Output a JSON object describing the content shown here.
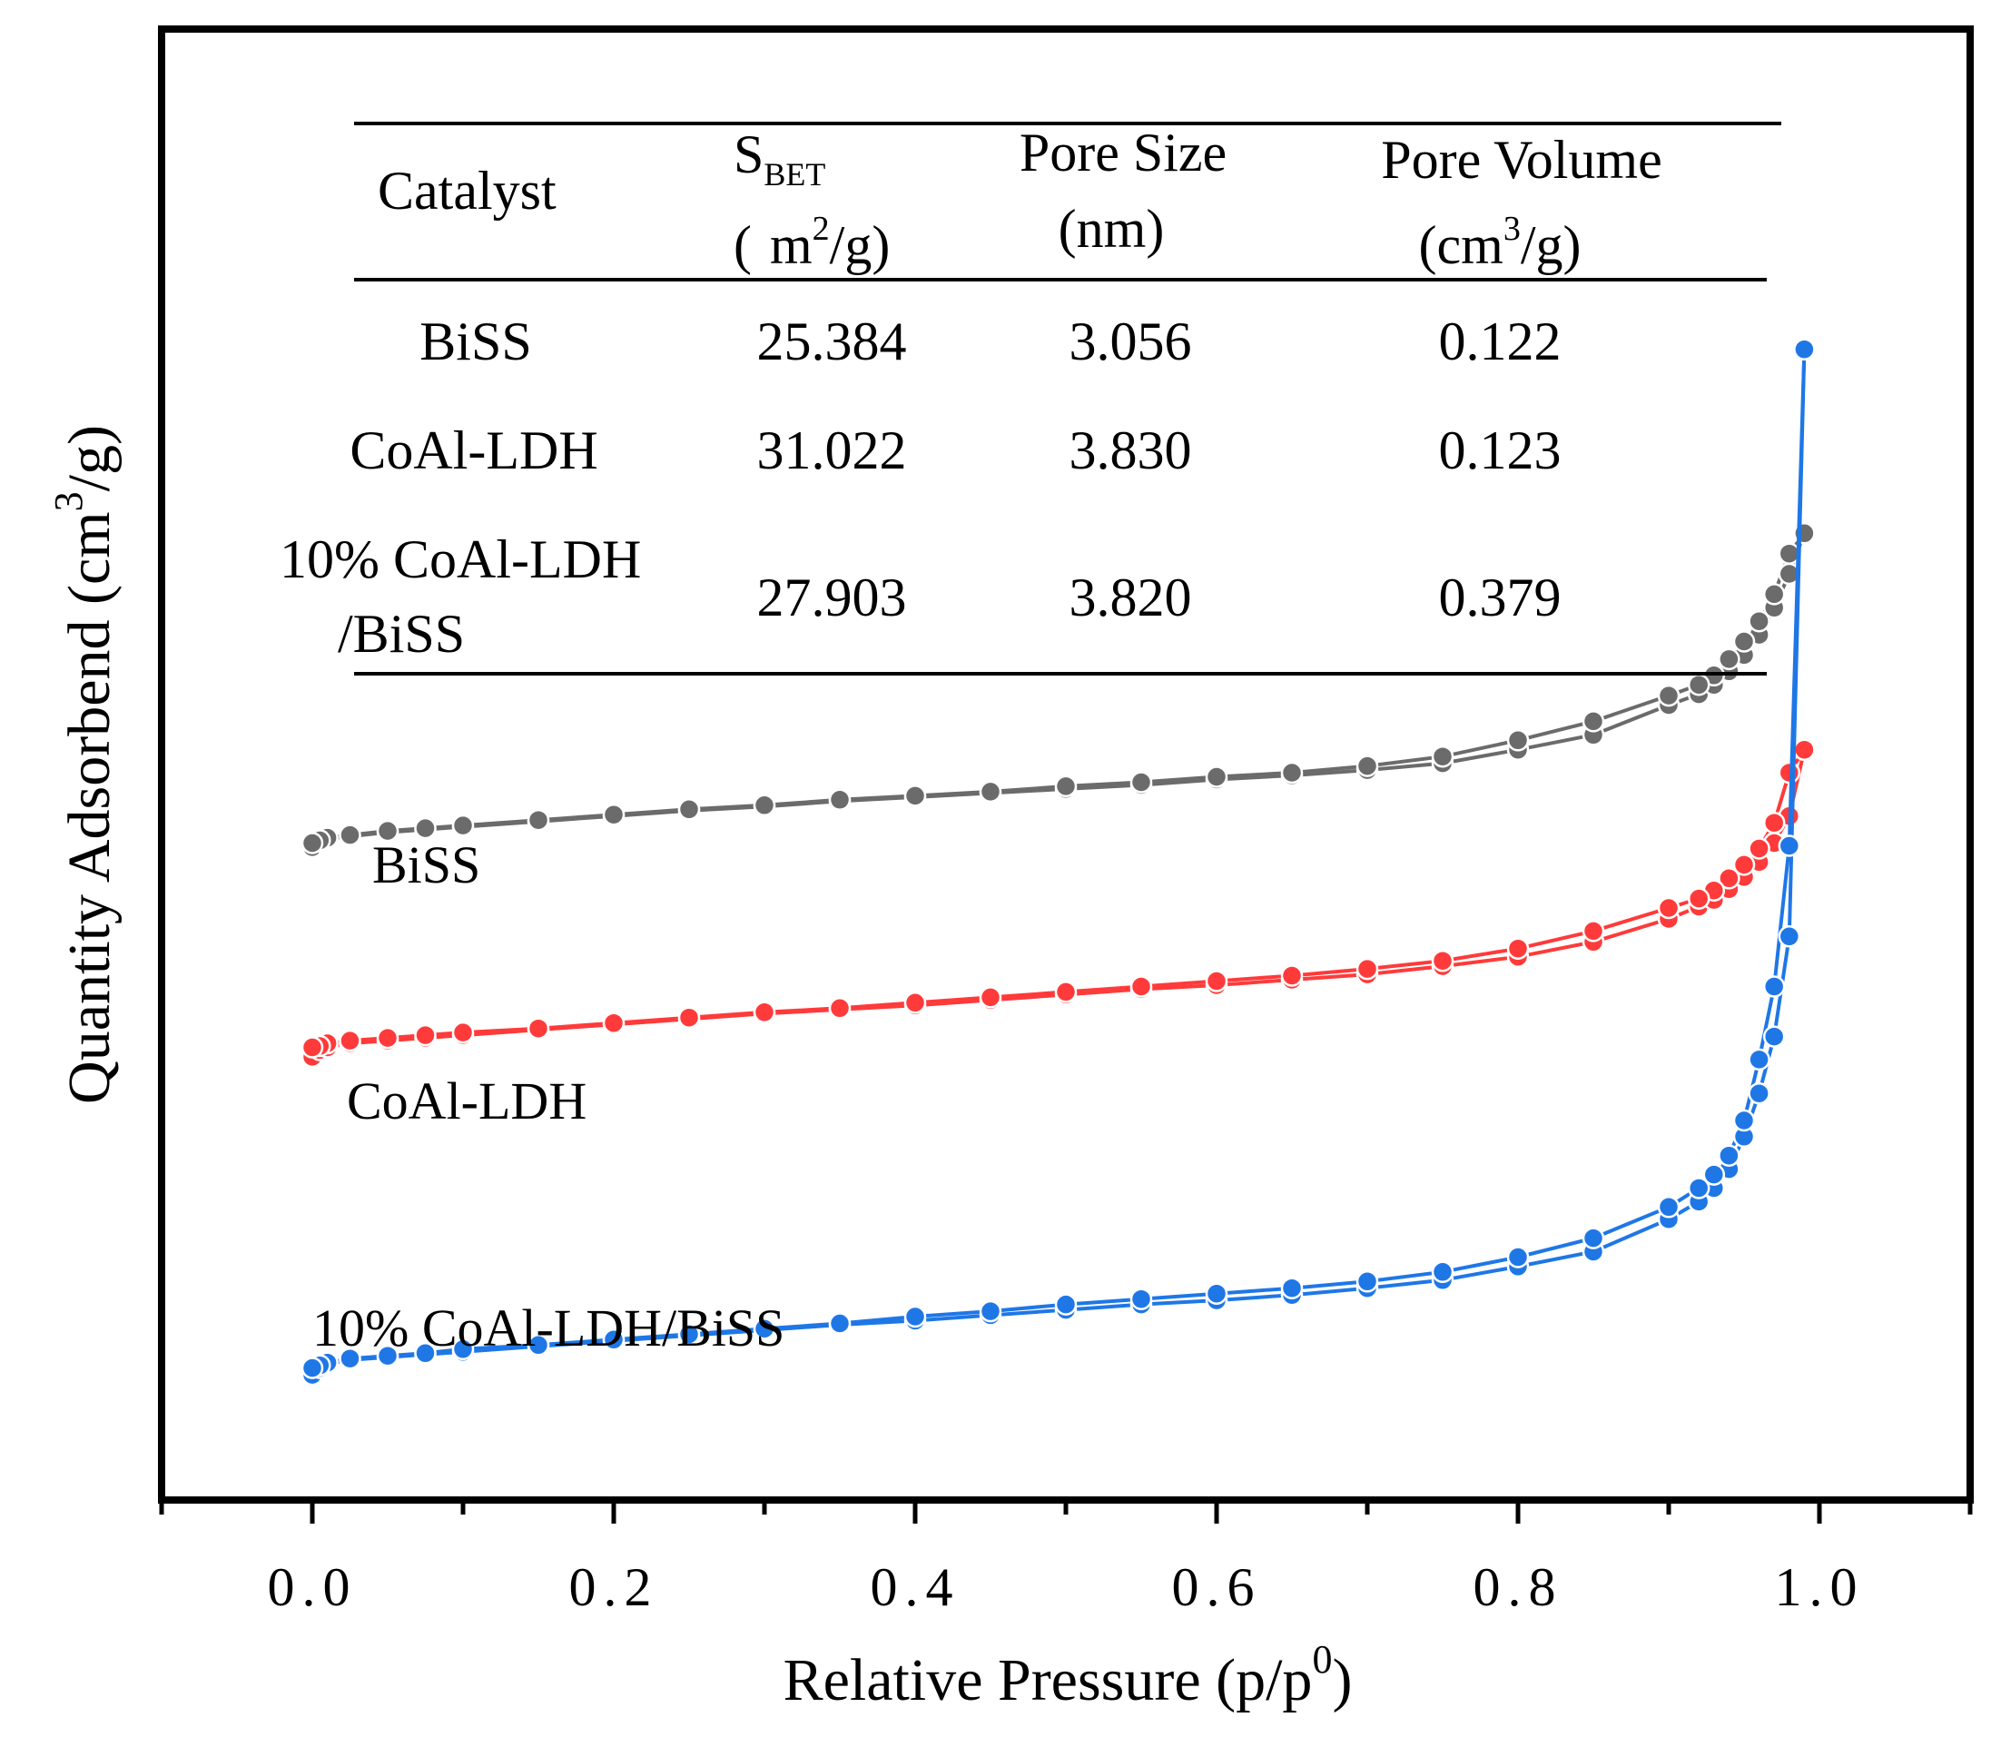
{
  "chart_data": {
    "type": "line",
    "title": "",
    "xlabel": "Relative Pressure (p/p",
    "xlabel_sup": "0",
    "xlabel_close": ")",
    "ylabel": "Quantity Adsorbend (cm",
    "ylabel_sup": "3",
    "ylabel_close": "/g)",
    "xlim": [
      -0.1,
      1.1
    ],
    "ylim": [
      0,
      100
    ],
    "xticks": [
      0.0,
      0.2,
      0.4,
      0.6,
      0.8,
      1.0
    ],
    "xtick_labels": [
      "0.0",
      "0.2",
      "0.4",
      "0.6",
      "0.8",
      "1.0"
    ],
    "yticks_shown": false,
    "series": [
      {
        "name": "BiSS",
        "label": "BiSS",
        "color": "#6b6b6b",
        "adsorption": {
          "x": [
            0.0,
            0.005,
            0.01,
            0.025,
            0.05,
            0.075,
            0.1,
            0.15,
            0.2,
            0.25,
            0.3,
            0.35,
            0.4,
            0.45,
            0.5,
            0.55,
            0.6,
            0.65,
            0.7,
            0.75,
            0.8,
            0.85,
            0.9,
            0.92,
            0.93,
            0.94,
            0.95,
            0.96,
            0.97,
            0.98,
            0.99
          ],
          "y": [
            44.9,
            45.3,
            45.5,
            45.7,
            46.0,
            46.2,
            46.4,
            46.8,
            47.2,
            47.6,
            47.9,
            48.3,
            48.6,
            48.9,
            49.2,
            49.5,
            49.9,
            50.2,
            50.6,
            51.1,
            52.1,
            53.2,
            55.4,
            56.2,
            56.9,
            57.9,
            59.1,
            60.6,
            62.6,
            65.1,
            68.1
          ]
        },
        "desorption": {
          "x": [
            0.99,
            0.98,
            0.97,
            0.96,
            0.95,
            0.94,
            0.93,
            0.92,
            0.9,
            0.85,
            0.8,
            0.75,
            0.7,
            0.65,
            0.6,
            0.55,
            0.5,
            0.45,
            0.4,
            0.35,
            0.3,
            0.25,
            0.2,
            0.15,
            0.1,
            0.075,
            0.05,
            0.025,
            0.01,
            0.005,
            0.0
          ],
          "y": [
            68.1,
            66.6,
            63.6,
            61.6,
            60.1,
            58.8,
            57.6,
            56.9,
            56.1,
            54.2,
            52.8,
            51.6,
            50.9,
            50.4,
            50.1,
            49.7,
            49.4,
            49.0,
            48.7,
            48.4,
            48.0,
            47.7,
            47.3,
            46.9,
            46.5,
            46.3,
            46.1,
            45.8,
            45.6,
            45.4,
            45.2
          ]
        }
      },
      {
        "name": "CoAl-LDH",
        "label": "CoAl-LDH",
        "color": "#ff3a3a",
        "adsorption": {
          "x": [
            0.0,
            0.005,
            0.01,
            0.025,
            0.05,
            0.075,
            0.1,
            0.15,
            0.2,
            0.25,
            0.3,
            0.35,
            0.4,
            0.45,
            0.5,
            0.55,
            0.6,
            0.65,
            0.7,
            0.75,
            0.8,
            0.85,
            0.9,
            0.92,
            0.93,
            0.94,
            0.95,
            0.96,
            0.97,
            0.98,
            0.99
          ],
          "y": [
            29.4,
            29.9,
            30.1,
            30.4,
            30.6,
            30.8,
            31.0,
            31.4,
            31.8,
            32.2,
            32.6,
            32.9,
            33.2,
            33.6,
            34.0,
            34.4,
            34.7,
            35.1,
            35.5,
            36.1,
            36.8,
            37.9,
            39.6,
            40.5,
            41.0,
            41.8,
            42.7,
            43.8,
            45.2,
            47.2,
            52.1
          ]
        },
        "desorption": {
          "x": [
            0.99,
            0.98,
            0.97,
            0.96,
            0.95,
            0.94,
            0.93,
            0.92,
            0.9,
            0.85,
            0.8,
            0.75,
            0.7,
            0.65,
            0.6,
            0.55,
            0.5,
            0.45,
            0.4,
            0.35,
            0.3,
            0.25,
            0.2,
            0.15,
            0.1,
            0.075,
            0.05,
            0.025,
            0.01,
            0.005,
            0.0
          ],
          "y": [
            52.1,
            50.4,
            46.7,
            44.8,
            43.6,
            42.6,
            41.7,
            41.1,
            40.4,
            38.7,
            37.4,
            36.5,
            35.9,
            35.4,
            35.0,
            34.6,
            34.2,
            33.8,
            33.4,
            33.0,
            32.7,
            32.3,
            31.9,
            31.5,
            31.2,
            31.0,
            30.8,
            30.6,
            30.4,
            30.2,
            30.1
          ]
        }
      },
      {
        "name": "10% CoAl-LDH/BiSS",
        "label": "10% CoAl-LDH/BiSS",
        "color": "#1f77e6",
        "adsorption": {
          "x": [
            0.0,
            0.005,
            0.01,
            0.025,
            0.05,
            0.075,
            0.1,
            0.15,
            0.2,
            0.25,
            0.3,
            0.35,
            0.4,
            0.45,
            0.5,
            0.55,
            0.6,
            0.65,
            0.7,
            0.75,
            0.8,
            0.85,
            0.9,
            0.92,
            0.93,
            0.94,
            0.95,
            0.96,
            0.97,
            0.98,
            0.99
          ],
          "y": [
            5.9,
            6.4,
            6.7,
            7.0,
            7.2,
            7.4,
            7.6,
            8.0,
            8.4,
            8.8,
            9.2,
            9.6,
            9.9,
            10.3,
            10.7,
            11.1,
            11.4,
            11.8,
            12.3,
            12.9,
            13.9,
            15.0,
            17.4,
            18.7,
            19.7,
            21.1,
            23.5,
            26.7,
            30.9,
            38.3,
            81.7
          ]
        },
        "desorption": {
          "x": [
            0.99,
            0.98,
            0.97,
            0.96,
            0.95,
            0.94,
            0.93,
            0.92,
            0.9,
            0.85,
            0.8,
            0.75,
            0.7,
            0.65,
            0.6,
            0.55,
            0.5,
            0.45,
            0.4,
            0.35,
            0.3,
            0.25,
            0.2,
            0.15,
            0.1,
            0.075,
            0.05,
            0.025,
            0.01,
            0.005,
            0.0
          ],
          "y": [
            81.7,
            45.0,
            34.6,
            29.2,
            24.7,
            22.1,
            20.7,
            19.7,
            18.3,
            16.0,
            14.6,
            13.5,
            12.8,
            12.3,
            11.9,
            11.5,
            11.1,
            10.6,
            10.2,
            9.7,
            9.3,
            8.9,
            8.5,
            8.1,
            7.8,
            7.5,
            7.3,
            7.1,
            6.8,
            6.6,
            6.4
          ]
        }
      }
    ],
    "annotation_table": {
      "header": {
        "catalyst": "Catalyst",
        "sbet_main": "S",
        "sbet_sub": "BET",
        "sbet_unit_open": "(",
        "sbet_unit": "m",
        "sbet_unit_sup": "2",
        "sbet_unit_close": "/g)",
        "pore_size": "Pore Size",
        "pore_size_unit": "(nm)",
        "pore_volume": "Pore Volume",
        "pore_volume_unit_open": "(cm",
        "pore_volume_unit_sup": "3",
        "pore_volume_unit_close": "/g)"
      },
      "rows": [
        {
          "catalyst": "BiSS",
          "catalyst_line2": "",
          "sbet": "25.384",
          "pore_size": "3.056",
          "pore_volume": "0.122"
        },
        {
          "catalyst": "CoAl-LDH",
          "catalyst_line2": "",
          "sbet": "31.022",
          "pore_size": "3.830",
          "pore_volume": "0.123"
        },
        {
          "catalyst": "10% CoAl-LDH",
          "catalyst_line2": "/BiSS",
          "sbet": "27.903",
          "pore_size": "3.820",
          "pore_volume": "0.379"
        }
      ]
    }
  }
}
